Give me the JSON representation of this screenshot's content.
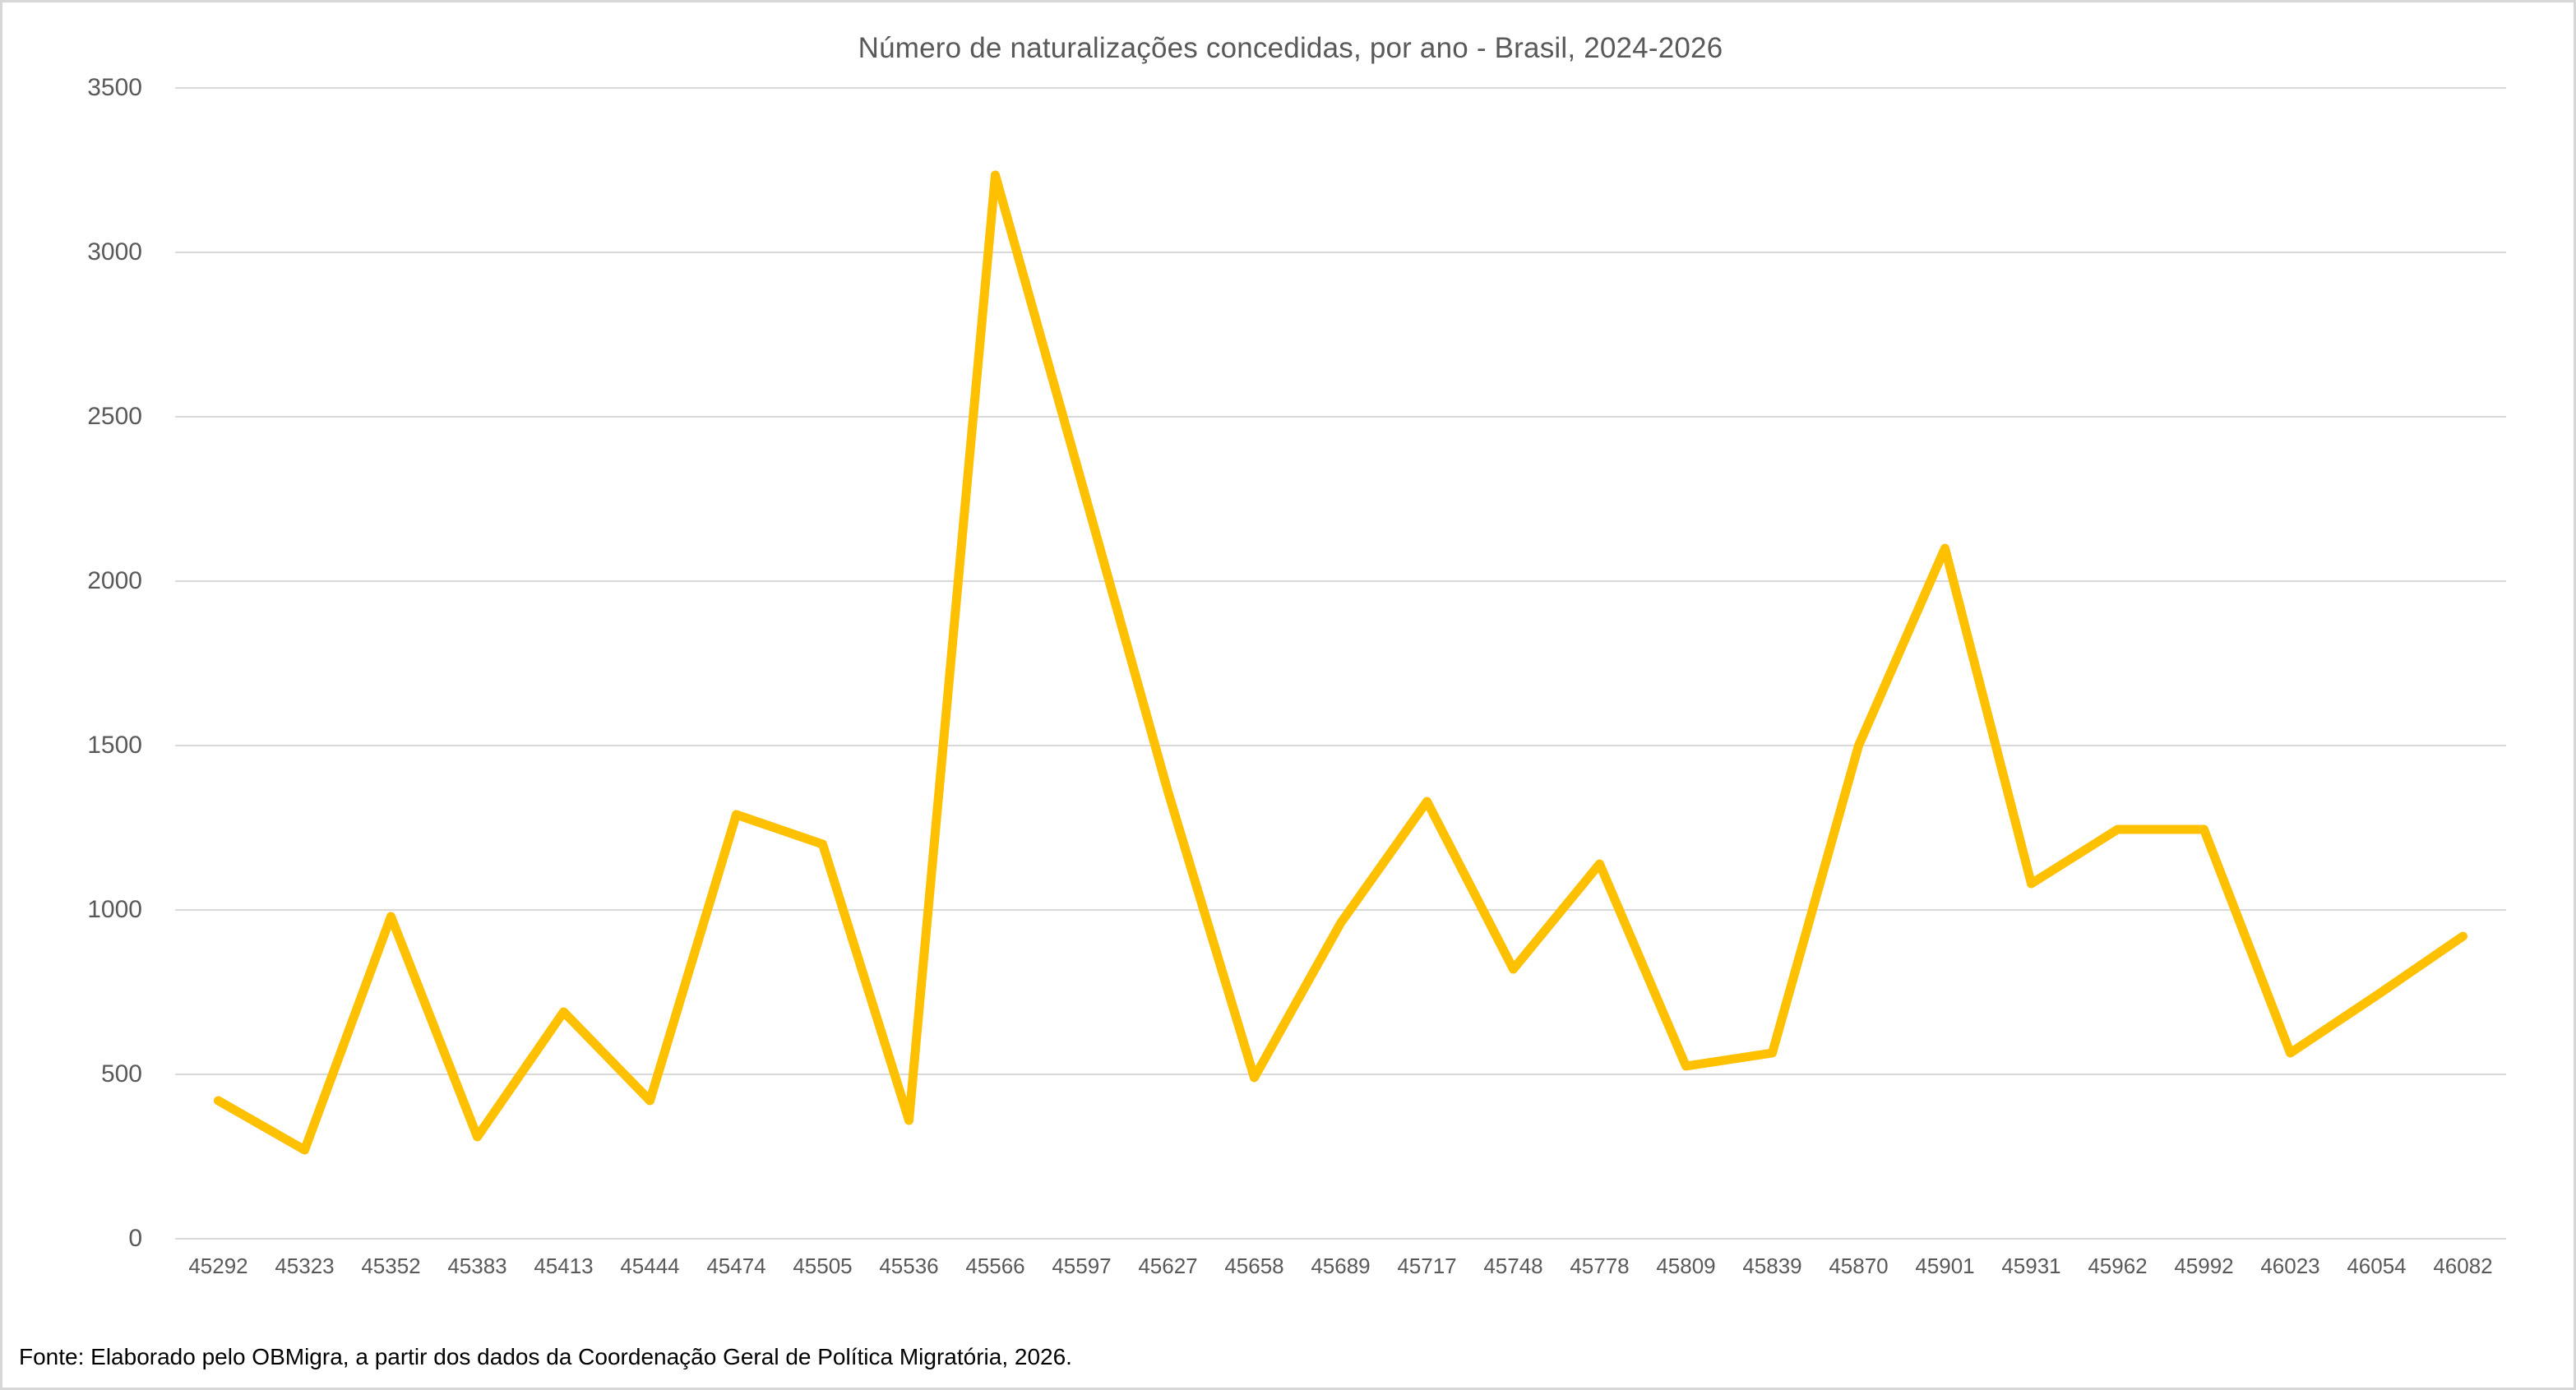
{
  "chart_data": {
    "type": "line",
    "title": "Número de naturalizações concedidas, por ano - Brasil, 2024-2026",
    "source_note": "Fonte: Elaborado pelo OBMigra, a partir dos dados da Coordenação Geral de Política Migratória, 2026.",
    "categories": [
      "45292",
      "45323",
      "45352",
      "45383",
      "45413",
      "45444",
      "45474",
      "45505",
      "45536",
      "45566",
      "45597",
      "45627",
      "45658",
      "45689",
      "45717",
      "45748",
      "45778",
      "45809",
      "45839",
      "45870",
      "45901",
      "45931",
      "45962",
      "45992",
      "46023",
      "46054",
      "46082"
    ],
    "values": [
      420,
      270,
      980,
      310,
      690,
      420,
      1290,
      1200,
      360,
      3235,
      2300,
      1360,
      490,
      960,
      1330,
      820,
      1140,
      525,
      565,
      1500,
      2100,
      1080,
      1245,
      1245,
      565,
      740,
      920
    ],
    "series_name": "Número de naturalizações concedidas",
    "ylim": [
      0,
      3500
    ],
    "ytick_step": 500,
    "yticks": [
      0,
      500,
      1000,
      1500,
      2000,
      2500,
      3000,
      3500
    ],
    "grid": "horizontal",
    "legend": "none",
    "markers": "none"
  },
  "colors": {
    "line": "#FFC000",
    "grid": "#D9D9D9",
    "axis_text": "#595959",
    "title_text": "#595959",
    "source_text": "#000000",
    "background": "#FFFFFF",
    "canvas_border": "#D7D7D7"
  }
}
